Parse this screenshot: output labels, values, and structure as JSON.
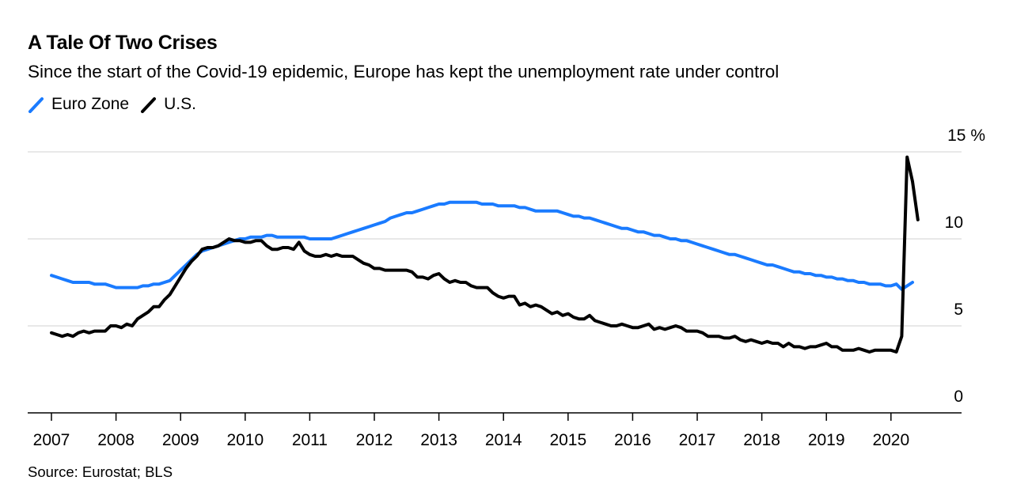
{
  "header": {
    "title": "A Tale Of Two Crises",
    "subtitle": "Since the start of the Covid-19 epidemic, Europe has kept the unemployment rate under control"
  },
  "legend": [
    {
      "label": "Euro Zone",
      "color": "#1a7bff",
      "icon": "diagonal-line-icon"
    },
    {
      "label": "U.S.",
      "color": "#000000",
      "icon": "diagonal-line-icon"
    }
  ],
  "footer": {
    "source": "Source: Eurostat; BLS"
  },
  "chart_data": {
    "type": "line",
    "title": "A Tale Of Two Crises",
    "subtitle": "Since the start of the Covid-19 epidemic, Europe has kept the unemployment rate under control",
    "xlabel": "",
    "ylabel": "%",
    "x_start": "2007-01",
    "x_frequency": "monthly",
    "xlim": [
      2007.0,
      2021.1
    ],
    "ylim": [
      0,
      15
    ],
    "x_ticks": [
      "2007",
      "2008",
      "2009",
      "2010",
      "2011",
      "2012",
      "2013",
      "2014",
      "2015",
      "2016",
      "2017",
      "2018",
      "2019",
      "2020"
    ],
    "y_ticks": [
      0,
      5,
      10,
      15
    ],
    "y_tick_labels": [
      "0",
      "5",
      "10",
      "15 %"
    ],
    "y_axis_side": "right",
    "grid": "horizontal",
    "legend_position": "top-left",
    "series": [
      {
        "name": "Euro Zone",
        "color": "#1a7bff",
        "values": [
          7.9,
          7.8,
          7.7,
          7.6,
          7.5,
          7.5,
          7.5,
          7.5,
          7.4,
          7.4,
          7.4,
          7.3,
          7.2,
          7.2,
          7.2,
          7.2,
          7.2,
          7.3,
          7.3,
          7.4,
          7.4,
          7.5,
          7.6,
          7.9,
          8.2,
          8.5,
          8.8,
          9.1,
          9.3,
          9.4,
          9.5,
          9.6,
          9.7,
          9.8,
          9.9,
          10.0,
          10.0,
          10.1,
          10.1,
          10.1,
          10.2,
          10.2,
          10.1,
          10.1,
          10.1,
          10.1,
          10.1,
          10.1,
          10.0,
          10.0,
          10.0,
          10.0,
          10.0,
          10.1,
          10.2,
          10.3,
          10.4,
          10.5,
          10.6,
          10.7,
          10.8,
          10.9,
          11.0,
          11.2,
          11.3,
          11.4,
          11.5,
          11.5,
          11.6,
          11.7,
          11.8,
          11.9,
          12.0,
          12.0,
          12.1,
          12.1,
          12.1,
          12.1,
          12.1,
          12.1,
          12.0,
          12.0,
          12.0,
          11.9,
          11.9,
          11.9,
          11.9,
          11.8,
          11.8,
          11.7,
          11.6,
          11.6,
          11.6,
          11.6,
          11.6,
          11.5,
          11.4,
          11.3,
          11.3,
          11.2,
          11.2,
          11.1,
          11.0,
          10.9,
          10.8,
          10.7,
          10.6,
          10.6,
          10.5,
          10.4,
          10.4,
          10.3,
          10.2,
          10.2,
          10.1,
          10.0,
          10.0,
          9.9,
          9.9,
          9.8,
          9.7,
          9.6,
          9.5,
          9.4,
          9.3,
          9.2,
          9.1,
          9.1,
          9.0,
          8.9,
          8.8,
          8.7,
          8.6,
          8.5,
          8.5,
          8.4,
          8.3,
          8.2,
          8.1,
          8.1,
          8.0,
          8.0,
          7.9,
          7.9,
          7.8,
          7.8,
          7.7,
          7.7,
          7.6,
          7.6,
          7.5,
          7.5,
          7.4,
          7.4,
          7.4,
          7.3,
          7.3,
          7.4,
          7.1,
          7.3,
          7.5
        ]
      },
      {
        "name": "U.S.",
        "color": "#000000",
        "values": [
          4.6,
          4.5,
          4.4,
          4.5,
          4.4,
          4.6,
          4.7,
          4.6,
          4.7,
          4.7,
          4.7,
          5.0,
          5.0,
          4.9,
          5.1,
          5.0,
          5.4,
          5.6,
          5.8,
          6.1,
          6.1,
          6.5,
          6.8,
          7.3,
          7.8,
          8.3,
          8.7,
          9.0,
          9.4,
          9.5,
          9.5,
          9.6,
          9.8,
          10.0,
          9.9,
          9.9,
          9.8,
          9.8,
          9.9,
          9.9,
          9.6,
          9.4,
          9.4,
          9.5,
          9.5,
          9.4,
          9.8,
          9.3,
          9.1,
          9.0,
          9.0,
          9.1,
          9.0,
          9.1,
          9.0,
          9.0,
          9.0,
          8.8,
          8.6,
          8.5,
          8.3,
          8.3,
          8.2,
          8.2,
          8.2,
          8.2,
          8.2,
          8.1,
          7.8,
          7.8,
          7.7,
          7.9,
          8.0,
          7.7,
          7.5,
          7.6,
          7.5,
          7.5,
          7.3,
          7.2,
          7.2,
          7.2,
          6.9,
          6.7,
          6.6,
          6.7,
          6.7,
          6.2,
          6.3,
          6.1,
          6.2,
          6.1,
          5.9,
          5.7,
          5.8,
          5.6,
          5.7,
          5.5,
          5.4,
          5.4,
          5.6,
          5.3,
          5.2,
          5.1,
          5.0,
          5.0,
          5.1,
          5.0,
          4.9,
          4.9,
          5.0,
          5.1,
          4.8,
          4.9,
          4.8,
          4.9,
          5.0,
          4.9,
          4.7,
          4.7,
          4.7,
          4.6,
          4.4,
          4.4,
          4.4,
          4.3,
          4.3,
          4.4,
          4.2,
          4.1,
          4.2,
          4.1,
          4.0,
          4.1,
          4.0,
          4.0,
          3.8,
          4.0,
          3.8,
          3.8,
          3.7,
          3.8,
          3.8,
          3.9,
          4.0,
          3.8,
          3.8,
          3.6,
          3.6,
          3.6,
          3.7,
          3.6,
          3.5,
          3.6,
          3.6,
          3.6,
          3.6,
          3.5,
          4.4,
          14.7,
          13.3,
          11.1
        ]
      }
    ]
  }
}
